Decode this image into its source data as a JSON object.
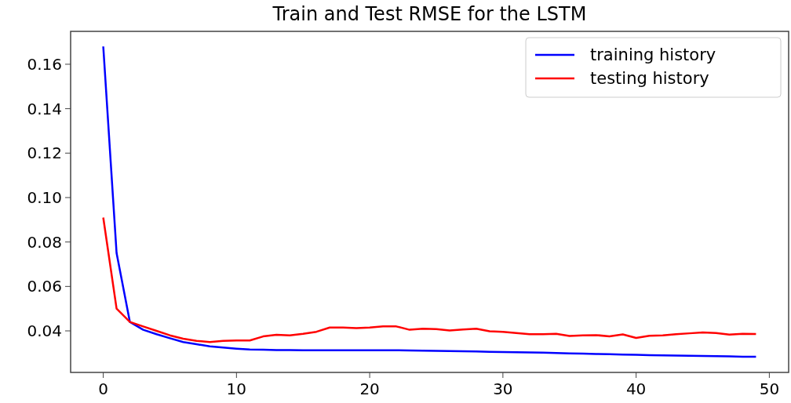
{
  "chart_data": {
    "type": "line",
    "title": "Train and Test RMSE for the LSTM",
    "x": [
      0,
      1,
      2,
      3,
      4,
      5,
      6,
      7,
      8,
      9,
      10,
      11,
      12,
      13,
      14,
      15,
      16,
      17,
      18,
      19,
      20,
      21,
      22,
      23,
      24,
      25,
      26,
      27,
      28,
      29,
      30,
      31,
      32,
      33,
      34,
      35,
      36,
      37,
      38,
      39,
      40,
      41,
      42,
      43,
      44,
      45,
      46,
      47,
      48,
      49
    ],
    "series": [
      {
        "name": "training history",
        "color": "#0000ff",
        "values": [
          0.168,
          0.075,
          0.044,
          0.0405,
          0.0385,
          0.0367,
          0.035,
          0.034,
          0.033,
          0.0325,
          0.032,
          0.0316,
          0.0315,
          0.0314,
          0.0314,
          0.0313,
          0.0313,
          0.0313,
          0.0313,
          0.0313,
          0.0313,
          0.0313,
          0.0313,
          0.0312,
          0.0311,
          0.031,
          0.0309,
          0.0308,
          0.0307,
          0.0306,
          0.0305,
          0.0304,
          0.0303,
          0.0302,
          0.03,
          0.0299,
          0.0298,
          0.0296,
          0.0295,
          0.0293,
          0.0292,
          0.0291,
          0.029,
          0.0289,
          0.0288,
          0.0287,
          0.0286,
          0.0285,
          0.0284,
          0.0284
        ]
      },
      {
        "name": "testing history",
        "color": "#ff0000",
        "values": [
          0.091,
          0.05,
          0.044,
          0.042,
          0.04,
          0.038,
          0.0365,
          0.0355,
          0.035,
          0.0355,
          0.0357,
          0.0357,
          0.0375,
          0.0382,
          0.038,
          0.0387,
          0.0396,
          0.0415,
          0.0415,
          0.0412,
          0.0415,
          0.042,
          0.042,
          0.0405,
          0.041,
          0.0408,
          0.0402,
          0.0406,
          0.041,
          0.0398,
          0.0396,
          0.039,
          0.0385,
          0.0385,
          0.0387,
          0.0377,
          0.038,
          0.0381,
          0.0375,
          0.0384,
          0.0368,
          0.0378,
          0.038,
          0.0385,
          0.0389,
          0.0393,
          0.039,
          0.0383,
          0.0387,
          0.0386
        ]
      }
    ],
    "xlim": [
      -2.45,
      51.45
    ],
    "xticks": [
      0,
      10,
      20,
      30,
      40,
      50
    ],
    "ylim": [
      0.0213,
      0.1748
    ],
    "yticks": [
      {
        "value": 0.04,
        "label": "0.04"
      },
      {
        "value": 0.06,
        "label": "0.06"
      },
      {
        "value": 0.08,
        "label": "0.08"
      },
      {
        "value": 0.1,
        "label": "0.10"
      },
      {
        "value": 0.12,
        "label": "0.12"
      },
      {
        "value": 0.14,
        "label": "0.14"
      },
      {
        "value": 0.16,
        "label": "0.16"
      }
    ],
    "legend": "top right",
    "grid": false
  }
}
